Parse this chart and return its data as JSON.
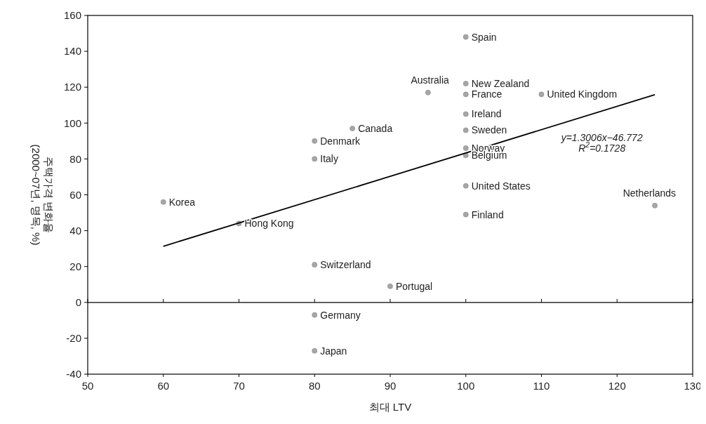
{
  "chart_data": {
    "type": "scatter",
    "xlabel": "최대 LTV",
    "ylabel": "주택가격 변화율\n(2000~07년, 명목, %)",
    "xlim": [
      50,
      130
    ],
    "xticks": [
      50,
      60,
      70,
      80,
      90,
      100,
      110,
      120,
      130
    ],
    "ylim": [
      -40,
      160
    ],
    "yticks": [
      -40,
      -20,
      0,
      20,
      40,
      60,
      80,
      100,
      120,
      140,
      160
    ],
    "ref_lines": [
      {
        "axis": "y",
        "value": 0,
        "color": "#000000"
      }
    ],
    "series": [
      {
        "color": "#a6a6a6",
        "marker": "circle",
        "x": [
          60,
          70,
          80,
          80,
          80,
          80,
          80,
          85,
          90,
          95,
          100,
          100,
          100,
          100,
          100,
          100,
          100,
          100,
          100,
          110,
          125
        ],
        "values": [
          56,
          44,
          21,
          90,
          80,
          -7,
          -27,
          97,
          9,
          117,
          148,
          122,
          116,
          105,
          96,
          86,
          82,
          65,
          49,
          116,
          54
        ]
      },
      {
        "type": "line",
        "color": "#000000",
        "line_style": "solid",
        "x": [
          60,
          125
        ],
        "values": [
          31.3,
          115.8
        ]
      }
    ],
    "annotations": [
      {
        "text": "Korea",
        "x": 60,
        "y": 56
      },
      {
        "text": "Hong Kong",
        "x": 70,
        "y": 44
      },
      {
        "text": "Switzerland",
        "x": 80,
        "y": 21
      },
      {
        "text": "Denmark",
        "x": 80,
        "y": 90
      },
      {
        "text": "Italy",
        "x": 80,
        "y": 80
      },
      {
        "text": "Germany",
        "x": 80,
        "y": -7
      },
      {
        "text": "Japan",
        "x": 80,
        "y": -27
      },
      {
        "text": "Canada",
        "x": 85,
        "y": 97
      },
      {
        "text": "Portugal",
        "x": 90,
        "y": 9
      },
      {
        "text": "Australia",
        "x": 95,
        "y": 117
      },
      {
        "text": "Spain",
        "x": 100,
        "y": 148
      },
      {
        "text": "New Zealand",
        "x": 100,
        "y": 122
      },
      {
        "text": "France",
        "x": 100,
        "y": 116
      },
      {
        "text": "Ireland",
        "x": 100,
        "y": 105
      },
      {
        "text": "Sweden",
        "x": 100,
        "y": 96
      },
      {
        "text": "Norway",
        "x": 100,
        "y": 86
      },
      {
        "text": "Belgium",
        "x": 100,
        "y": 82
      },
      {
        "text": "United States",
        "x": 100,
        "y": 65
      },
      {
        "text": "Finland",
        "x": 100,
        "y": 49
      },
      {
        "text": "United Kingdom",
        "x": 110,
        "y": 116
      },
      {
        "text": "Netherlands",
        "x": 125,
        "y": 54
      },
      "y=1.3006x−46.772\nR$^{2}$=0.1728"
    ]
  }
}
